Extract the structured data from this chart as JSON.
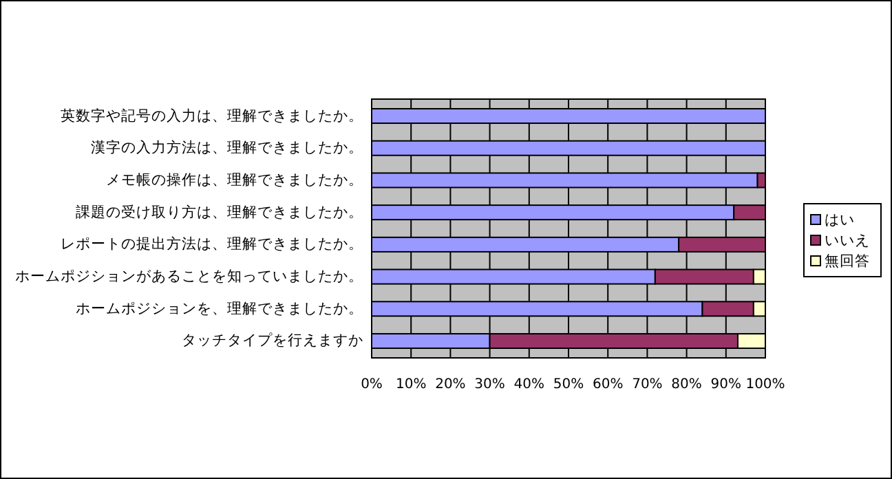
{
  "chart_data": {
    "type": "bar",
    "orientation": "horizontal",
    "stacked": true,
    "categories": [
      "英数字や記号の入力は、理解できましたか。",
      "漢字の入力方法は、理解できましたか。",
      "メモ帳の操作は、理解できましたか。",
      "課題の受け取り方は、理解できましたか。",
      "レポートの提出方法は、理解できましたか。",
      "ホームポジションがあることを知っていましたか。",
      "ホームポジションを、理解できましたか。",
      "タッチタイプを行えますか"
    ],
    "series": [
      {
        "name": "はい",
        "color": "#9999ff",
        "values": [
          100,
          100,
          98,
          92,
          78,
          72,
          84,
          30
        ]
      },
      {
        "name": "いいえ",
        "color": "#993366",
        "values": [
          0,
          0,
          2,
          8,
          22,
          25,
          13,
          63
        ]
      },
      {
        "name": "無回答",
        "color": "#ffffcc",
        "values": [
          0,
          0,
          0,
          0,
          0,
          3,
          3,
          7
        ]
      }
    ],
    "xlim": [
      0,
      100
    ],
    "xticks": [
      {
        "value": 0,
        "label": "0%"
      },
      {
        "value": 10,
        "label": "10%"
      },
      {
        "value": 20,
        "label": "20%"
      },
      {
        "value": 30,
        "label": "30%"
      },
      {
        "value": 40,
        "label": "40%"
      },
      {
        "value": 50,
        "label": "50%"
      },
      {
        "value": 60,
        "label": "60%"
      },
      {
        "value": 70,
        "label": "70%"
      },
      {
        "value": 80,
        "label": "80%"
      },
      {
        "value": 90,
        "label": "90%"
      },
      {
        "value": 100,
        "label": "100%"
      }
    ],
    "grid": "x",
    "legend": "right"
  }
}
